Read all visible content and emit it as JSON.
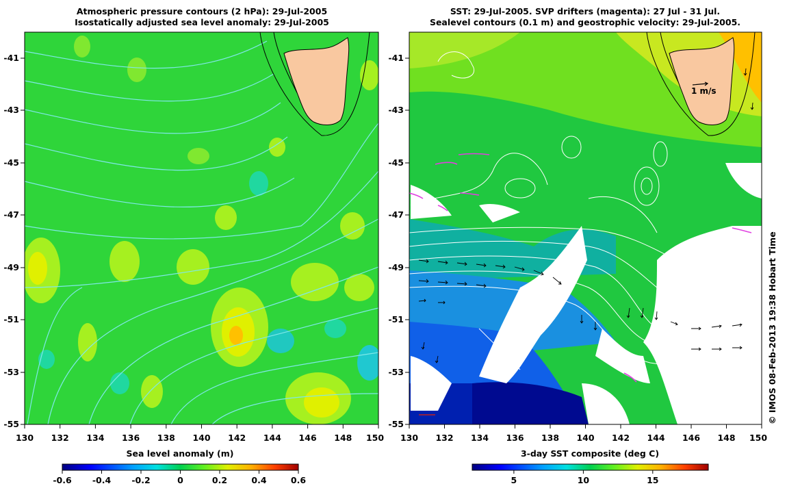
{
  "left_panel": {
    "title_line1": "Atmospheric pressure contours (2 hPa): 29-Jul-2005",
    "title_line2": "Isostatically adjusted sea level anomaly: 29-Jul-2005",
    "x_ticks": [
      "130",
      "132",
      "134",
      "136",
      "138",
      "140",
      "142",
      "144",
      "146",
      "148",
      "150"
    ],
    "y_ticks": [
      "-41",
      "-43",
      "-45",
      "-47",
      "-49",
      "-51",
      "-53",
      "-55"
    ],
    "colorbar_label": "Sea level anomaly (m)",
    "colorbar_ticks": [
      "-0.6",
      "-0.4",
      "-0.2",
      "0",
      "0.2",
      "0.4",
      "0.6"
    ],
    "colorbar_range": [
      -0.6,
      0.6
    ]
  },
  "right_panel": {
    "title_line1": "SST: 29-Jul-2005. SVP drifters (magenta): 27 Jul - 31 Jul.",
    "title_line2": "Sealevel contours (0.1 m) and geostrophic velocity: 29-Jul-2005.",
    "x_ticks": [
      "130",
      "132",
      "134",
      "136",
      "138",
      "140",
      "142",
      "144",
      "146",
      "148",
      "150"
    ],
    "y_ticks": [
      "-41",
      "-43",
      "-45",
      "-47",
      "-49",
      "-51",
      "-53",
      "-55"
    ],
    "scale_label": "1 m/s",
    "colorbar_label": "3-day SST composite (deg C)",
    "colorbar_ticks": [
      "5",
      "10",
      "15"
    ],
    "colorbar_range": [
      2,
      19
    ]
  },
  "credit": "© IMOS 08-Feb-2013 19:38 Hobart Time",
  "map_extent": {
    "lon": [
      130,
      150
    ],
    "lat": [
      -55,
      -40
    ]
  },
  "colors": {
    "land": "#f9c8a0",
    "ocean_base": "#2fd53a",
    "pressure_contour": "#7fe8e8",
    "sealevel_contour": "#ffffff",
    "drifter": "#e040e0",
    "colormap": [
      "#000080",
      "#0000ff",
      "#00a0ff",
      "#00e0e0",
      "#00d050",
      "#60f020",
      "#e0f000",
      "#ffb000",
      "#ff4000",
      "#a00000"
    ]
  }
}
